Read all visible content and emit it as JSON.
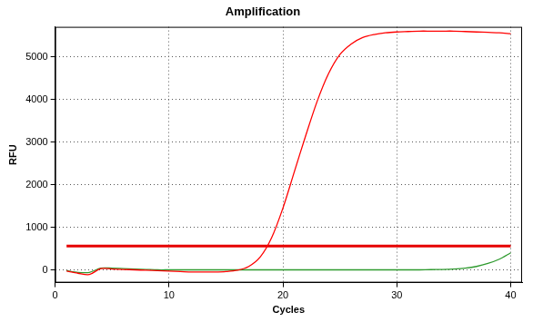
{
  "chart_data": {
    "type": "line",
    "title": "Amplification",
    "x_label": "Cycles",
    "y_label": "RFU",
    "x": [
      1,
      2,
      3,
      4,
      5,
      6,
      7,
      8,
      9,
      10,
      11,
      12,
      13,
      14,
      15,
      16,
      17,
      18,
      19,
      20,
      21,
      22,
      23,
      24,
      25,
      26,
      27,
      28,
      29,
      30,
      31,
      32,
      33,
      34,
      35,
      36,
      37,
      38,
      39,
      40
    ],
    "series": [
      {
        "color": "#ff0000",
        "values": [
          -30,
          -80,
          -110,
          30,
          20,
          10,
          0,
          -10,
          -20,
          -30,
          -40,
          -50,
          -50,
          -50,
          -40,
          -10,
          80,
          300,
          750,
          1450,
          2300,
          3150,
          3950,
          4600,
          5050,
          5300,
          5450,
          5520,
          5560,
          5580,
          5590,
          5600,
          5600,
          5600,
          5600,
          5590,
          5580,
          5570,
          5560,
          5540
        ]
      },
      {
        "color": "#2e9a2e",
        "values": [
          -20,
          -60,
          -60,
          40,
          40,
          30,
          20,
          10,
          0,
          0,
          0,
          0,
          0,
          0,
          0,
          0,
          0,
          0,
          0,
          0,
          0,
          0,
          0,
          0,
          0,
          0,
          0,
          0,
          0,
          0,
          0,
          0,
          5,
          10,
          20,
          40,
          80,
          150,
          250,
          400
        ]
      }
    ],
    "threshold": {
      "value": 560,
      "color": "#e60000"
    },
    "xlim": [
      0,
      41
    ],
    "xticks": [
      0,
      10,
      20,
      30,
      40
    ],
    "ylim": [
      -300,
      5700
    ],
    "yticks": [
      0,
      1000,
      2000,
      3000,
      4000,
      5000
    ],
    "grid": true
  }
}
